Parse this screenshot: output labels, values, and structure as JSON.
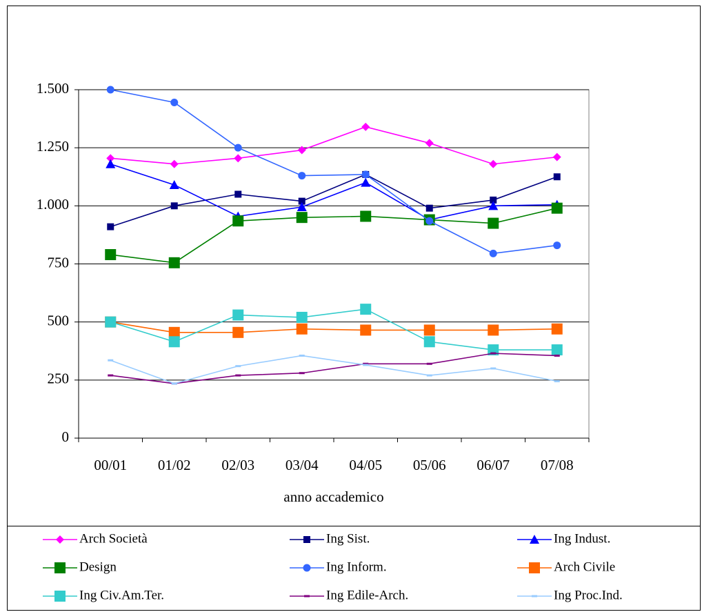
{
  "chart_data": {
    "type": "line",
    "x_label": "anno accademico",
    "categories": [
      "00/01",
      "01/02",
      "02/03",
      "03/04",
      "04/05",
      "05/06",
      "06/07",
      "07/08"
    ],
    "ylim": [
      0,
      1500
    ],
    "yticks": [
      0,
      250,
      500,
      750,
      {
        "value": 1000,
        "label": "1.000"
      },
      {
        "value": 1250,
        "label": "1.250"
      },
      {
        "value": 1500,
        "label": "1.500"
      }
    ],
    "grid": true,
    "legend": "bottom",
    "series": [
      {
        "name": "Arch Società",
        "color": "#ff00ff",
        "marker": "diamond",
        "values": [
          1205,
          1180,
          1205,
          1240,
          1340,
          1270,
          1180,
          1210
        ]
      },
      {
        "name": "Ing Sist.",
        "color": "#000080",
        "marker": "square",
        "values": [
          910,
          1000,
          1050,
          1020,
          1135,
          990,
          1025,
          1125
        ]
      },
      {
        "name": "Ing Indust.",
        "color": "#0000ff",
        "marker": "triangle",
        "values": [
          1180,
          1090,
          955,
          995,
          1100,
          940,
          1000,
          1005
        ]
      },
      {
        "name": "Design",
        "color": "#008000",
        "marker": "big-square",
        "values": [
          790,
          755,
          935,
          950,
          955,
          940,
          925,
          990
        ]
      },
      {
        "name": "Ing Inform.",
        "color": "#3366ff",
        "marker": "circle",
        "values": [
          1500,
          1445,
          1250,
          1130,
          1135,
          935,
          795,
          830
        ]
      },
      {
        "name": "Arch Civile",
        "color": "#ff6600",
        "marker": "big-square",
        "values": [
          500,
          455,
          455,
          470,
          465,
          465,
          465,
          470
        ]
      },
      {
        "name": "Ing Civ.Am.Ter.",
        "color": "#33cccc",
        "marker": "big-square",
        "values": [
          500,
          415,
          530,
          520,
          555,
          415,
          380,
          380
        ]
      },
      {
        "name": "Ing Edile-Arch.",
        "color": "#800080",
        "marker": "dash",
        "values": [
          270,
          235,
          270,
          280,
          320,
          320,
          365,
          355
        ]
      },
      {
        "name": "Ing Proc.Ind.",
        "color": "#99ccff",
        "marker": "dash",
        "values": [
          335,
          235,
          310,
          355,
          315,
          270,
          300,
          245
        ]
      }
    ]
  }
}
